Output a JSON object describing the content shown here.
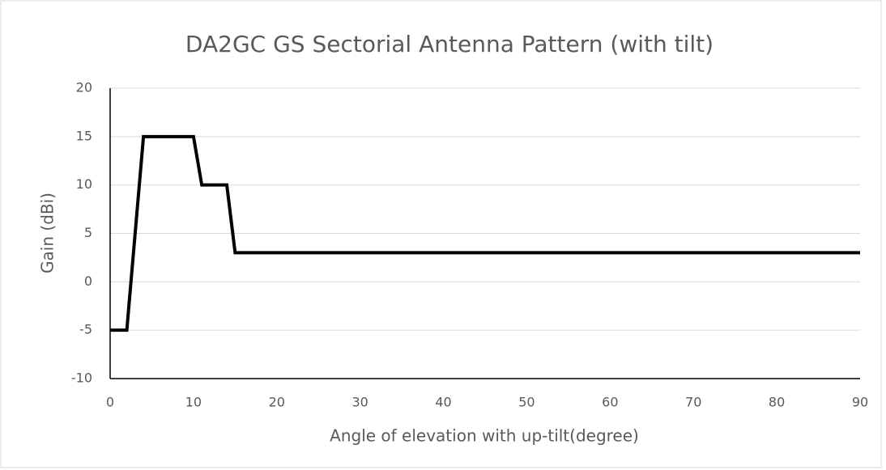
{
  "chart_data": {
    "type": "line",
    "title": "DA2GC GS Sectorial Antenna Pattern (with tilt)",
    "x_label": "Angle of elevation with up-tilt(degree)",
    "y_label": "Gain (dBi)",
    "x": [
      0,
      2,
      4,
      10,
      11,
      14,
      15,
      90
    ],
    "series": [
      {
        "name": "Gain",
        "color": "#000000",
        "values": [
          -5,
          -5,
          15,
          15,
          10,
          10,
          3,
          3
        ]
      }
    ],
    "xlim": [
      0,
      90
    ],
    "xticks": [
      0,
      10,
      20,
      30,
      40,
      50,
      60,
      70,
      80,
      90
    ],
    "ylim": [
      -10,
      20
    ],
    "yticks": [
      -10,
      -5,
      0,
      5,
      10,
      15,
      20
    ],
    "grid": true
  }
}
